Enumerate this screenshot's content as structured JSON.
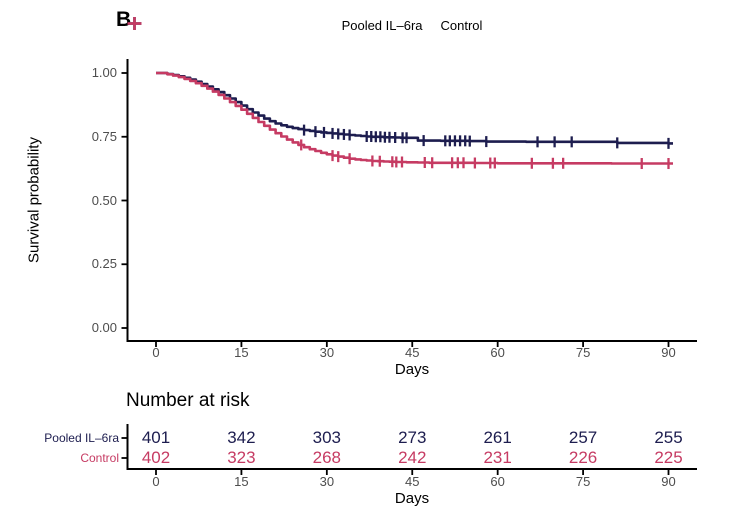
{
  "panel_label": "B",
  "colors": {
    "treatment": "#1d1d4f",
    "control": "#c63b63",
    "axis": "#000000",
    "tick_label": "#4d4d4d"
  },
  "legend": {
    "items": [
      {
        "label": "Pooled IL–6ra",
        "color": "#1d1d4f"
      },
      {
        "label": "Control",
        "color": "#c63b63"
      }
    ]
  },
  "chart_data": {
    "type": "line",
    "subtype": "kaplan-meier-step",
    "title": "",
    "xlabel": "Days",
    "ylabel": "Survival probability",
    "xlim": [
      0,
      90
    ],
    "ylim": [
      0.0,
      1.0
    ],
    "xticks": [
      0,
      15,
      30,
      45,
      60,
      75,
      90
    ],
    "ytick_values": [
      0,
      0.25,
      0.5,
      0.75,
      1
    ],
    "ytick_labels": [
      "0.00",
      "0.25",
      "0.50",
      "0.75",
      "1.00"
    ],
    "grid": false,
    "legend_position": "top",
    "series": [
      {
        "name": "Pooled IL–6ra",
        "color": "#1d1d4f",
        "steps": [
          [
            0,
            1.0
          ],
          [
            2,
            0.996
          ],
          [
            3,
            0.992
          ],
          [
            4,
            0.987
          ],
          [
            5,
            0.981
          ],
          [
            6,
            0.974
          ],
          [
            7,
            0.966
          ],
          [
            8,
            0.957
          ],
          [
            9,
            0.947
          ],
          [
            10,
            0.936
          ],
          [
            11,
            0.925
          ],
          [
            12,
            0.913
          ],
          [
            13,
            0.9
          ],
          [
            14,
            0.886
          ],
          [
            15,
            0.872
          ],
          [
            16,
            0.858
          ],
          [
            17,
            0.845
          ],
          [
            18,
            0.833
          ],
          [
            19,
            0.821
          ],
          [
            20,
            0.811
          ],
          [
            21,
            0.802
          ],
          [
            22,
            0.795
          ],
          [
            23,
            0.789
          ],
          [
            24,
            0.784
          ],
          [
            25,
            0.78
          ],
          [
            26,
            0.776
          ],
          [
            27,
            0.773
          ],
          [
            28,
            0.77
          ],
          [
            29,
            0.767
          ],
          [
            30,
            0.765
          ],
          [
            31,
            0.763
          ],
          [
            32,
            0.761
          ],
          [
            33,
            0.759
          ],
          [
            34,
            0.757
          ],
          [
            35,
            0.755
          ],
          [
            36,
            0.753
          ],
          [
            37,
            0.751
          ],
          [
            38,
            0.75
          ],
          [
            40,
            0.748
          ],
          [
            42,
            0.747
          ],
          [
            43,
            0.746
          ],
          [
            46,
            0.735
          ],
          [
            50,
            0.734
          ],
          [
            55,
            0.733
          ],
          [
            58,
            0.731
          ],
          [
            65,
            0.73
          ],
          [
            81,
            0.726
          ],
          [
            90,
            0.724
          ]
        ],
        "censor_days": [
          26,
          28,
          29.5,
          31,
          32,
          33,
          34,
          37,
          37.8,
          38.6,
          39.4,
          40.2,
          41,
          42,
          43.3,
          44,
          47,
          50.8,
          51.6,
          52.5,
          53.4,
          54.3,
          55.1,
          58,
          67,
          70,
          73,
          81,
          90
        ]
      },
      {
        "name": "Control",
        "color": "#c63b63",
        "steps": [
          [
            0,
            1.0
          ],
          [
            2,
            0.995
          ],
          [
            3,
            0.99
          ],
          [
            4,
            0.984
          ],
          [
            5,
            0.977
          ],
          [
            6,
            0.969
          ],
          [
            7,
            0.96
          ],
          [
            8,
            0.95
          ],
          [
            9,
            0.939
          ],
          [
            10,
            0.927
          ],
          [
            11,
            0.914
          ],
          [
            12,
            0.9
          ],
          [
            13,
            0.886
          ],
          [
            14,
            0.871
          ],
          [
            15,
            0.856
          ],
          [
            16,
            0.84
          ],
          [
            17,
            0.824
          ],
          [
            18,
            0.808
          ],
          [
            19,
            0.793
          ],
          [
            20,
            0.778
          ],
          [
            21,
            0.764
          ],
          [
            22,
            0.751
          ],
          [
            23,
            0.739
          ],
          [
            24,
            0.728
          ],
          [
            25,
            0.718
          ],
          [
            26,
            0.709
          ],
          [
            27,
            0.701
          ],
          [
            28,
            0.694
          ],
          [
            29,
            0.687
          ],
          [
            30,
            0.681
          ],
          [
            31,
            0.676
          ],
          [
            32,
            0.672
          ],
          [
            33,
            0.668
          ],
          [
            34,
            0.664
          ],
          [
            35,
            0.661
          ],
          [
            36,
            0.659
          ],
          [
            37,
            0.657
          ],
          [
            38,
            0.655
          ],
          [
            39,
            0.654
          ],
          [
            40,
            0.653
          ],
          [
            41,
            0.652
          ],
          [
            42,
            0.651
          ],
          [
            44,
            0.65
          ],
          [
            46,
            0.649
          ],
          [
            48,
            0.648
          ],
          [
            52,
            0.648
          ],
          [
            56,
            0.647
          ],
          [
            60,
            0.646
          ],
          [
            70,
            0.646
          ],
          [
            80,
            0.645
          ],
          [
            90,
            0.645
          ]
        ],
        "censor_days": [
          25.5,
          31,
          32,
          34,
          38,
          39.3,
          41.5,
          42.2,
          43.2,
          47.2,
          48.5,
          52,
          53,
          54,
          56,
          58.7,
          59.5,
          66,
          69.7,
          71.5,
          85.3,
          90
        ]
      }
    ]
  },
  "risk_table": {
    "title": "Number at risk",
    "xlabel": "Days",
    "xticks": [
      0,
      15,
      30,
      45,
      60,
      75,
      90
    ],
    "rows": [
      {
        "label": "Pooled IL–6ra",
        "color": "#1d1d4f",
        "values": [
          401,
          342,
          303,
          273,
          261,
          257,
          255
        ]
      },
      {
        "label": "Control",
        "color": "#c63b63",
        "values": [
          402,
          323,
          268,
          242,
          231,
          226,
          225
        ]
      }
    ]
  }
}
